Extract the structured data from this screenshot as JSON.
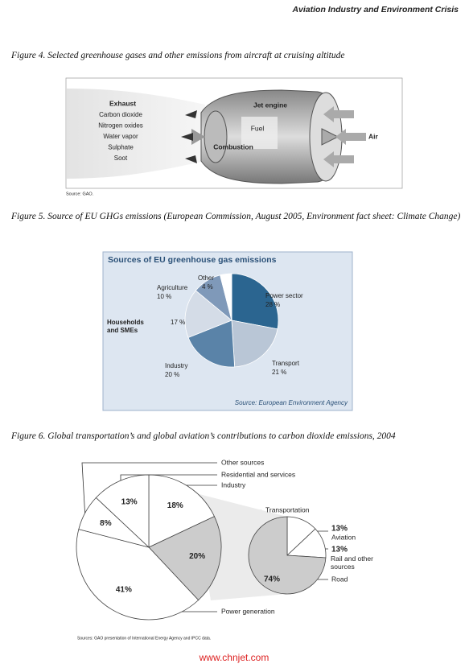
{
  "header": {
    "title": "Aviation Industry and Environment Crisis"
  },
  "figure4": {
    "caption": "Figure 4. Selected greenhouse gases and other emissions from aircraft at cruising altitude",
    "exhaust_title": "Exhaust",
    "exhaust_items": [
      "Carbon dioxide",
      "Nitrogen oxides",
      "Water vapor",
      "Sulphate",
      "Soot"
    ],
    "labels": {
      "jet_engine": "Jet engine",
      "fuel": "Fuel",
      "combustion": "Combustion",
      "air": "Air"
    },
    "source": "Source: GAO."
  },
  "figure5": {
    "caption": "Figure 5. Source of EU GHGs emissions (European Commission, August 2005, Environment fact sheet: Climate Change)",
    "chart": {
      "type": "pie",
      "title": "Sources of EU greenhouse gas emissions",
      "slices": [
        {
          "name": "Power sector",
          "value": 28,
          "value_label": "28 %",
          "color": "#2b6590"
        },
        {
          "name": "Transport",
          "value": 21,
          "value_label": "21 %",
          "color": "#b9c6d6"
        },
        {
          "name": "Industry",
          "value": 20,
          "value_label": "20 %",
          "color": "#5a83a8"
        },
        {
          "name": "Households and SMEs",
          "value": 17,
          "value_label": "17 %",
          "color": "#d4dce7"
        },
        {
          "name": "Agriculture",
          "value": 10,
          "value_label": "10 %",
          "color": "#7f99b9"
        },
        {
          "name": "Other",
          "value": 4,
          "value_label": "4 %",
          "color": "#ffffff"
        }
      ],
      "source": "Source: European Environment Agency"
    }
  },
  "figure6": {
    "caption": "Figure 6. Global transportation’s and global aviation’s contributions to carbon dioxide emissions, 2004",
    "main_pie": {
      "type": "pie",
      "slices": [
        {
          "name": "Industry",
          "value": 18,
          "value_label": "18%",
          "color": "#ffffff"
        },
        {
          "name": "Transportation",
          "value": 20,
          "value_label": "20%",
          "color": "#cccccc"
        },
        {
          "name": "Power generation",
          "value": 41,
          "value_label": "41%",
          "color": "#ffffff"
        },
        {
          "name": "Other sources",
          "value": 8,
          "value_label": "8%",
          "color": "#ffffff"
        },
        {
          "name": "Residential and services",
          "value": 13,
          "value_label": "13%",
          "color": "#ffffff"
        }
      ]
    },
    "detail_pie": {
      "type": "pie",
      "slices": [
        {
          "name": "Aviation",
          "value": 13,
          "value_label": "13%",
          "color": "#ffffff"
        },
        {
          "name": "Rail and other sources",
          "value": 13,
          "value_label": "13%",
          "color": "#ffffff"
        },
        {
          "name": "Road",
          "value": 74,
          "value_label": "74%",
          "color": "#cccccc"
        }
      ]
    },
    "source": "Sources: GAO presentation of International Energy Agency and IPCC data."
  },
  "watermark": "www.chnjet.com"
}
